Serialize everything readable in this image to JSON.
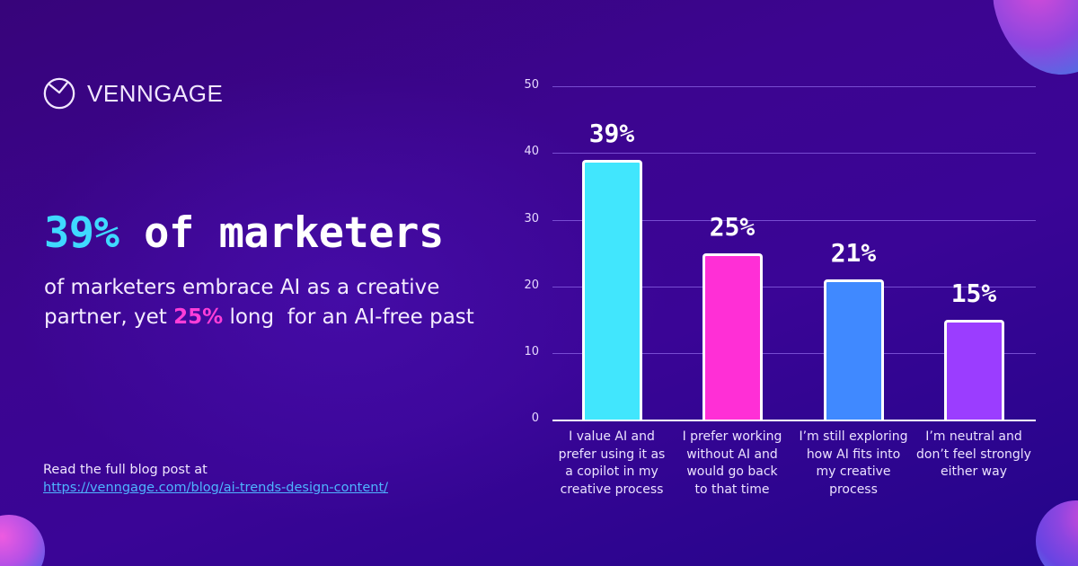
{
  "brand": {
    "name": "VENNGAGE",
    "icon": "venngage-clock-logo-icon"
  },
  "headline": {
    "accent": "39%",
    "rest": " of marketers",
    "accent_color": "#3fd9ff"
  },
  "subtext": {
    "part1": "of marketers embrace AI as a creative partner, yet ",
    "highlight": "25%",
    "part2": " long  for an AI-free past",
    "highlight_color": "#ff3ed8"
  },
  "footer": {
    "label": "Read the full blog post at",
    "link": "https://venngage.com/blog/ai-trends-design-content/"
  },
  "chart_data": {
    "type": "bar",
    "title": "",
    "xlabel": "",
    "ylabel": "",
    "ylim": [
      0,
      50
    ],
    "yticks": [
      0,
      10,
      20,
      30,
      40,
      50
    ],
    "grid": true,
    "legend": "none",
    "categories": [
      "I value AI and prefer using it as a copilot in my creative process",
      "I prefer working without AI and would go back to that time",
      "I’m still exploring how AI fits into my creative process",
      "I’m neutral and don’t feel strongly either way"
    ],
    "values": [
      39,
      25,
      21,
      15
    ],
    "data_labels": [
      "39%",
      "25%",
      "21%",
      "15%"
    ],
    "colors": [
      "#41e6fd",
      "#ff2fd6",
      "#4089ff",
      "#9b3dff"
    ]
  },
  "ytick_labels": [
    "50",
    "40",
    "30",
    "20",
    "10",
    "0"
  ],
  "category_lines": [
    [
      "I value AI and",
      "prefer using it as",
      "a copilot in my",
      "creative process"
    ],
    [
      "I prefer working",
      "without AI and",
      "would go back",
      "to that time"
    ],
    [
      "I’m still exploring",
      "how AI fits into",
      "my creative",
      "process"
    ],
    [
      "I’m neutral and",
      "don’t feel strongly",
      "either way"
    ]
  ]
}
